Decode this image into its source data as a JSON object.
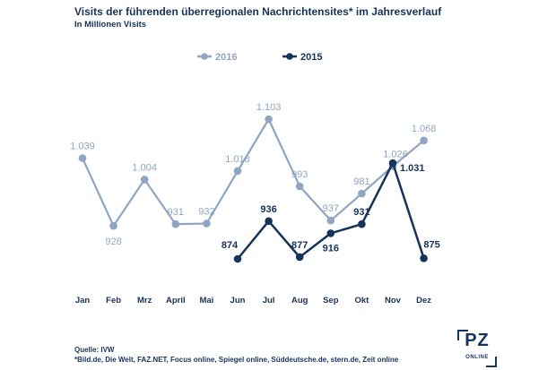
{
  "header": {
    "title": "Visits der führenden überregionalen Nachrichtensites* im Jahresverlauf",
    "subtitle": "In Millionen Visits"
  },
  "footer": {
    "source": "Quelle: IVW",
    "footnote": "*Bild.de, Die Welt, FAZ.NET, Focus online, Spiegel online, Süddeutsche.de, stern.de, Zeit online"
  },
  "logo": {
    "main": "PZ",
    "sub": "ONLINE"
  },
  "colors": {
    "series_2016": "#8fa5c2",
    "series_2015": "#16335a",
    "text_dark": "#16335a"
  },
  "chart_data": {
    "type": "line",
    "title": "Visits der führenden überregionalen Nachrichtensites* im Jahresverlauf",
    "ylabel": "In Millionen Visits",
    "xlabel": "",
    "categories": [
      "Jan",
      "Feb",
      "Mrz",
      "April",
      "Mai",
      "Jun",
      "Jul",
      "Aug",
      "Sep",
      "Okt",
      "Nov",
      "Dez"
    ],
    "ylim": [
      850,
      1110
    ],
    "grid": false,
    "legend_position": "top",
    "series": [
      {
        "name": "2016",
        "color": "#8fa5c2",
        "values": [
          1039,
          928,
          1004,
          931,
          932,
          1018,
          1103,
          993,
          937,
          981,
          1026,
          1068
        ],
        "labels": [
          "1.039",
          "928",
          "1.004",
          "931",
          "932",
          "1.018",
          "1.103",
          "993",
          "937",
          "981",
          "1.026",
          "1.068"
        ]
      },
      {
        "name": "2015",
        "color": "#16335a",
        "values": [
          null,
          null,
          null,
          null,
          null,
          874,
          936,
          877,
          916,
          931,
          1031,
          875
        ],
        "labels": [
          "",
          "",
          "",
          "",
          "",
          "874",
          "936",
          "877",
          "916",
          "931",
          "1.031",
          "875"
        ]
      }
    ]
  }
}
